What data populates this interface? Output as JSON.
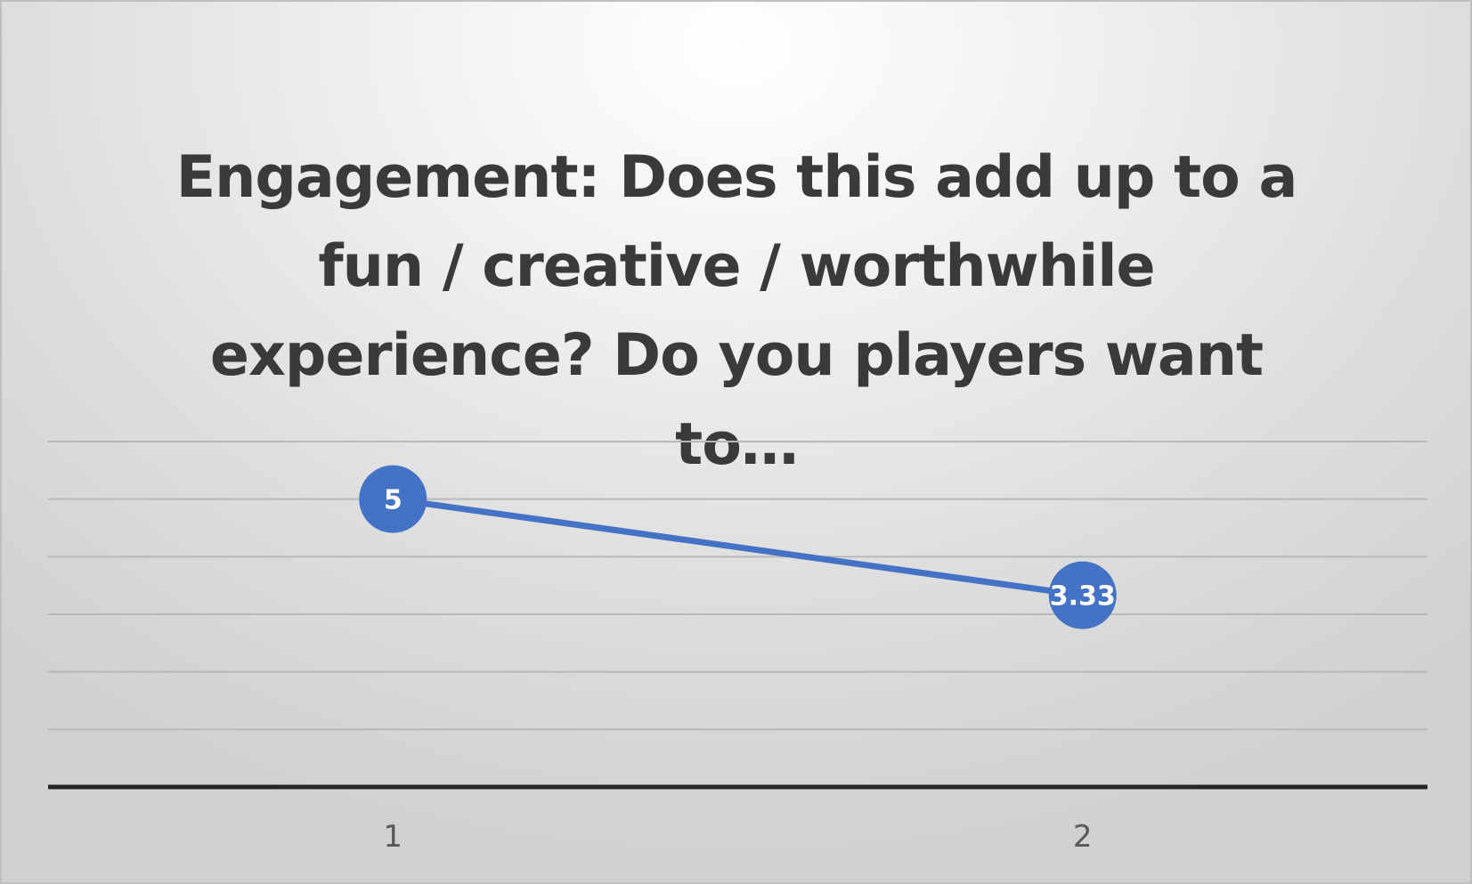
{
  "chart_data": {
    "type": "line",
    "title": "Engagement: Does this add up to a fun / creative / worthwhile experience? Do you players want to…",
    "xlabel": "",
    "ylabel": "",
    "categories": [
      "1",
      "2"
    ],
    "series": [
      {
        "values": [
          5,
          3.33
        ],
        "labels": [
          "5",
          "3.33"
        ],
        "color": "#4472c4"
      }
    ],
    "ylim": [
      0,
      6
    ],
    "y_step": 1,
    "grid": true,
    "gridline_color": "#b8b8b8",
    "axis_color": "#262626",
    "legend": "none"
  }
}
